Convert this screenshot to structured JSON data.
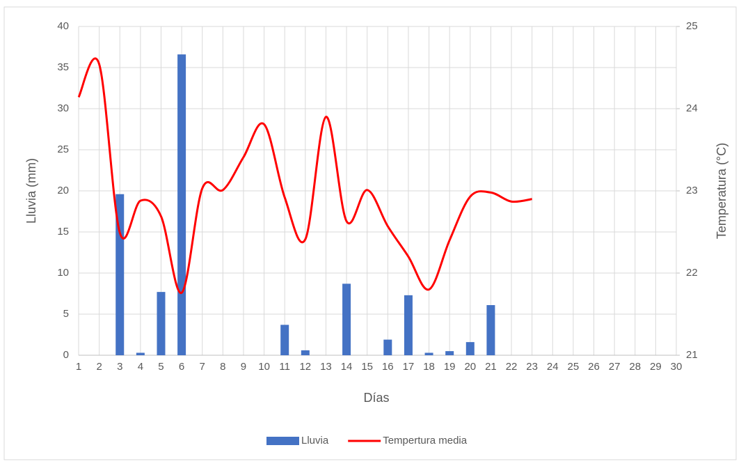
{
  "chart_data": {
    "type": "bar-line",
    "x": [
      1,
      2,
      3,
      4,
      5,
      6,
      7,
      8,
      9,
      10,
      11,
      12,
      13,
      14,
      15,
      16,
      17,
      18,
      19,
      20,
      21,
      22,
      23,
      24,
      25,
      26,
      27,
      28,
      29,
      30
    ],
    "xlim": [
      1,
      30
    ],
    "xticks": [
      1,
      2,
      3,
      4,
      5,
      6,
      7,
      8,
      9,
      10,
      11,
      12,
      13,
      14,
      15,
      16,
      17,
      18,
      19,
      20,
      21,
      22,
      23,
      24,
      25,
      26,
      27,
      28,
      29,
      30
    ],
    "x_label": "Días",
    "y_label": "Lluvia (mm)",
    "y2_label": "Temperatura (°C)",
    "ylim": [
      0,
      40
    ],
    "yticks": [
      0,
      5,
      10,
      15,
      20,
      25,
      30,
      35,
      40
    ],
    "y2lim": [
      21,
      25
    ],
    "y2ticks": [
      21,
      22,
      23,
      24,
      25
    ],
    "grid": true,
    "legend": "bottom",
    "series": [
      {
        "name": "Lluvia",
        "type": "bar",
        "color": "#4472c4",
        "values": [
          0,
          0,
          19.6,
          0.3,
          7.7,
          36.6,
          0,
          0,
          0,
          0,
          3.7,
          0.6,
          0,
          8.7,
          0,
          1.9,
          7.3,
          0.3,
          0.5,
          1.6,
          6.1,
          0,
          0,
          null,
          null,
          null,
          null,
          null,
          null,
          null
        ]
      },
      {
        "name": "Tempertura media",
        "type": "line",
        "axis": "y2",
        "color": "#ff0000",
        "values": [
          24.14,
          24.54,
          22.49,
          22.88,
          22.69,
          21.76,
          23.03,
          23.01,
          23.41,
          23.81,
          22.92,
          22.41,
          23.9,
          22.63,
          23.01,
          22.57,
          22.2,
          21.8,
          22.4,
          22.93,
          22.98,
          22.87,
          22.9,
          null,
          null,
          null,
          null,
          null,
          null,
          null
        ]
      }
    ]
  }
}
